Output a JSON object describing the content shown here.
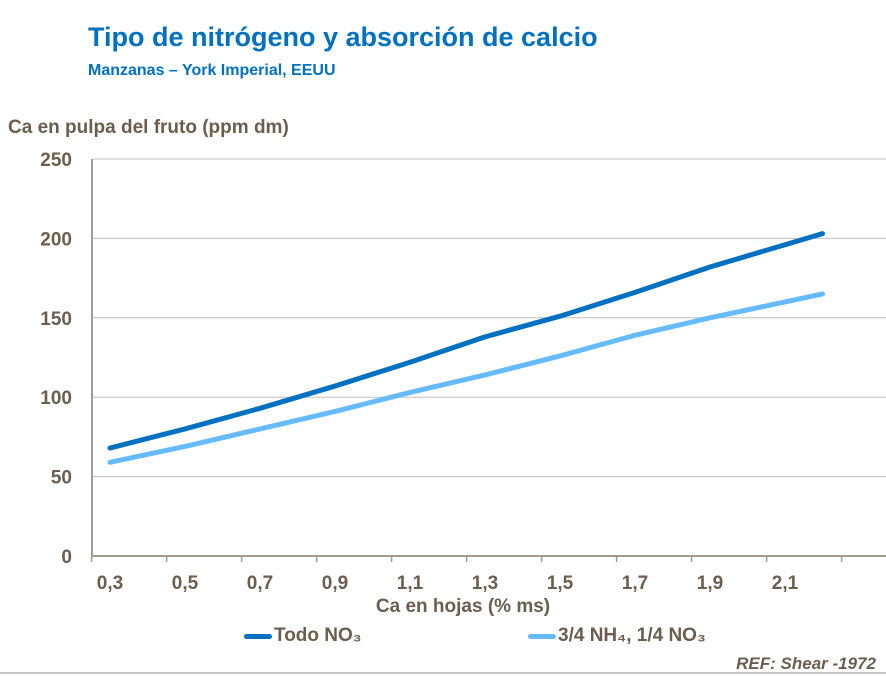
{
  "title": "Tipo de nitrógeno y absorción de calcio",
  "subtitle": "Manzanas – York Imperial, EEUU",
  "reference": "REF: Shear -1972",
  "chart_data": {
    "type": "line",
    "ylabel": "Ca en pulpa del fruto (ppm dm)",
    "xlabel": "Ca en hojas (% ms)",
    "ylim": [
      0,
      250
    ],
    "yticks": [
      "0",
      "50",
      "100",
      "150",
      "200",
      "250"
    ],
    "xticks": [
      "0,3",
      "0,5",
      "0,7",
      "0,9",
      "1,1",
      "1,3",
      "1,5",
      "1,7",
      "1,9",
      "2,1"
    ],
    "xlim": [
      0.23,
      2.4
    ],
    "grid": true,
    "legend_position": "bottom",
    "x": [
      0.3,
      0.5,
      0.7,
      0.9,
      1.1,
      1.3,
      1.5,
      1.7,
      1.9,
      2.1,
      2.2
    ],
    "series": [
      {
        "name": "Todo NO₃",
        "color": "#0070c0",
        "values": [
          68,
          80,
          93,
          107,
          122,
          138,
          151,
          166,
          182,
          196,
          203
        ]
      },
      {
        "name": "3/4 NH₄, 1/4 NO₃",
        "color": "#66bbff",
        "values": [
          59,
          69,
          80,
          91,
          103,
          114,
          126,
          139,
          150,
          160,
          165
        ]
      }
    ]
  }
}
